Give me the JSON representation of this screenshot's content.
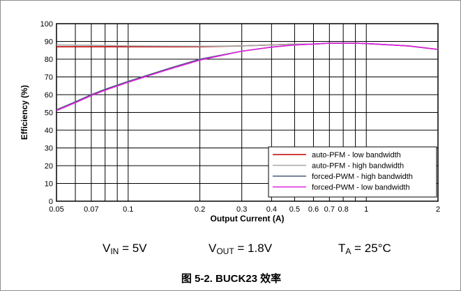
{
  "caption": "图 5-2. BUCK23 效率",
  "conditions": {
    "vin_main": "V",
    "vin_sub": "IN",
    "vin_rest": " = 5V",
    "vout_main": "V",
    "vout_sub": "OUT",
    "vout_rest": " = 1.8V",
    "ta_main": "T",
    "ta_sub": "A",
    "ta_rest": " = 25°C"
  },
  "chart_data": {
    "type": "line",
    "title": "",
    "xlabel": "Output Current (A)",
    "ylabel": "Efficiency (%)",
    "x_scale": "log",
    "xlim": [
      0.05,
      2
    ],
    "ylim": [
      0,
      100
    ],
    "grid": true,
    "legend_position": "bottom-right",
    "x_ticks": [
      0.05,
      0.06,
      0.07,
      0.08,
      0.09,
      0.1,
      0.2,
      0.3,
      0.4,
      0.5,
      0.6,
      0.7,
      0.8,
      0.9,
      1,
      2
    ],
    "x_tick_labels": [
      {
        "value": 0.05,
        "label": "0.05"
      },
      {
        "value": 0.07,
        "label": "0.07"
      },
      {
        "value": 0.1,
        "label": "0.1"
      },
      {
        "value": 0.2,
        "label": "0.2"
      },
      {
        "value": 0.3,
        "label": "0.3"
      },
      {
        "value": 0.4,
        "label": "0.4"
      },
      {
        "value": 0.5,
        "label": "0.5"
      },
      {
        "value": 0.6,
        "label": "0.6"
      },
      {
        "value": 0.7,
        "label": "0.7"
      },
      {
        "value": 0.8,
        "label": "0.8"
      },
      {
        "value": 1,
        "label": "1"
      },
      {
        "value": 2,
        "label": "2"
      }
    ],
    "y_ticks": [
      0,
      10,
      20,
      30,
      40,
      50,
      60,
      70,
      80,
      90,
      100
    ],
    "series": [
      {
        "name": "auto-PFM - low bandwidth",
        "color": "#c00000",
        "x": [
          0.05,
          0.07,
          0.1,
          0.2,
          0.3,
          0.4,
          0.5,
          0.6,
          0.7,
          0.8,
          0.9,
          1,
          1.5,
          2
        ],
        "y": [
          87,
          87,
          87,
          87,
          87.5,
          88,
          88.5,
          88.5,
          89,
          89,
          89,
          88.8,
          87.5,
          85.5
        ]
      },
      {
        "name": "auto-PFM - high bandwidth",
        "color": "#a6a6a6",
        "x": [
          0.05,
          0.07,
          0.1,
          0.2,
          0.3,
          0.4,
          0.5,
          0.6,
          0.7,
          0.8,
          0.9,
          1,
          1.5,
          2
        ],
        "y": [
          88,
          87.8,
          87.5,
          87.3,
          87.5,
          88,
          88.5,
          88.5,
          89,
          89,
          89,
          88.8,
          87.5,
          85.5
        ]
      },
      {
        "name": "forced-PWM - high bandwidth",
        "color": "#4a5a7a",
        "x": [
          0.05,
          0.06,
          0.07,
          0.08,
          0.1,
          0.15,
          0.2,
          0.3,
          0.4,
          0.5,
          0.6,
          0.7,
          0.8,
          0.9,
          1,
          1.5,
          2
        ],
        "y": [
          51.5,
          56,
          60,
          63,
          67.5,
          75,
          80,
          84.5,
          86.8,
          88,
          88.5,
          89,
          89,
          89,
          88.8,
          87.5,
          85.5
        ]
      },
      {
        "name": "forced-PWM - low bandwidth",
        "color": "#e020e0",
        "x": [
          0.05,
          0.06,
          0.07,
          0.08,
          0.1,
          0.15,
          0.2,
          0.3,
          0.4,
          0.5,
          0.6,
          0.7,
          0.8,
          0.9,
          1,
          1.5,
          2
        ],
        "y": [
          51,
          55.5,
          59.5,
          62.5,
          67,
          74.5,
          79.5,
          84.5,
          86.8,
          88,
          88.5,
          89,
          89,
          89,
          88.8,
          87.5,
          85.5
        ]
      }
    ]
  }
}
